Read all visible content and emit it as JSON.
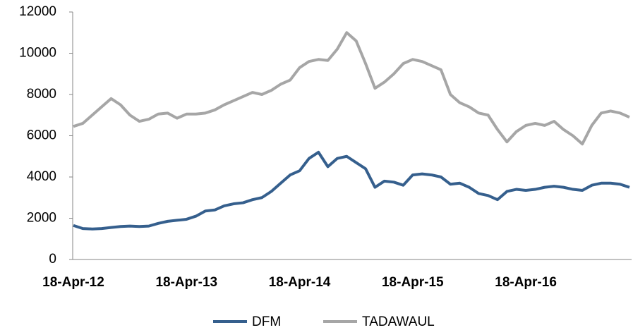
{
  "chart_data": {
    "type": "line",
    "categories": [
      "18-Apr-12",
      null,
      null,
      null,
      null,
      null,
      null,
      null,
      null,
      null,
      null,
      null,
      "18-Apr-13",
      null,
      null,
      null,
      null,
      null,
      null,
      null,
      null,
      null,
      null,
      null,
      "18-Apr-14",
      null,
      null,
      null,
      null,
      null,
      null,
      null,
      null,
      null,
      null,
      null,
      "18-Apr-15",
      null,
      null,
      null,
      null,
      null,
      null,
      null,
      null,
      null,
      null,
      null,
      "18-Apr-16",
      null,
      null,
      null,
      null,
      null,
      null,
      null,
      null,
      null,
      null,
      null
    ],
    "series": [
      {
        "name": "DFM",
        "color": "#355f8d",
        "values": [
          1650,
          1500,
          1480,
          1500,
          1550,
          1600,
          1620,
          1600,
          1620,
          1750,
          1850,
          1900,
          1950,
          2100,
          2350,
          2400,
          2600,
          2700,
          2750,
          2900,
          3000,
          3300,
          3700,
          4100,
          4300,
          4900,
          5200,
          4500,
          4900,
          5000,
          4700,
          4400,
          3500,
          3800,
          3750,
          3600,
          4100,
          4150,
          4100,
          4000,
          3650,
          3700,
          3500,
          3200,
          3100,
          2900,
          3300,
          3400,
          3350,
          3400,
          3500,
          3550,
          3500,
          3400,
          3350,
          3600,
          3700,
          3700,
          3650,
          3500
        ]
      },
      {
        "name": "TADAWAUL",
        "color": "#a6a6a6",
        "values": [
          6450,
          6600,
          7000,
          7400,
          7800,
          7500,
          7000,
          6700,
          6800,
          7050,
          7100,
          6850,
          7050,
          7050,
          7100,
          7250,
          7500,
          7700,
          7900,
          8100,
          8000,
          8200,
          8500,
          8700,
          9300,
          9600,
          9700,
          9650,
          10200,
          11000,
          10600,
          9500,
          8300,
          8600,
          9000,
          9500,
          9700,
          9600,
          9400,
          9200,
          8000,
          7600,
          7400,
          7100,
          7000,
          6300,
          5700,
          6200,
          6500,
          6600,
          6500,
          6700,
          6300,
          6000,
          5600,
          6500,
          7100,
          7200,
          7100,
          6900
        ]
      }
    ],
    "ylim": [
      0,
      12000
    ],
    "yticks": [
      0,
      2000,
      4000,
      6000,
      8000,
      10000,
      12000
    ],
    "legend": "bottom"
  }
}
